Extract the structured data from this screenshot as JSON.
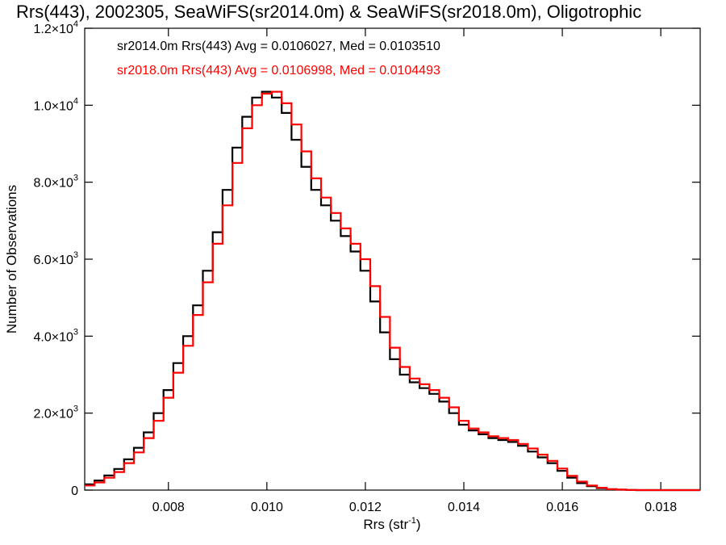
{
  "chart_data": {
    "type": "line",
    "title": "Rrs(443), 2002305, SeaWiFS(sr2014.0m) & SeaWiFS(sr2018.0m), Oligotrophic",
    "xlabel": "Rrs (str",
    "xlabel_sup": "-1",
    "xlabel_close": ")",
    "ylabel": "Number of Observations",
    "xlim": [
      0.0063,
      0.0188
    ],
    "ylim": [
      0,
      12000
    ],
    "x_ticks": [
      {
        "value": 0.008,
        "label": "0.008"
      },
      {
        "value": 0.01,
        "label": "0.010"
      },
      {
        "value": 0.012,
        "label": "0.012"
      },
      {
        "value": 0.014,
        "label": "0.014"
      },
      {
        "value": 0.016,
        "label": "0.016"
      },
      {
        "value": 0.018,
        "label": "0.018"
      }
    ],
    "y_ticks": [
      {
        "value": 0,
        "label": "0",
        "sup": ""
      },
      {
        "value": 2000,
        "label": "2.0×10",
        "sup": "3"
      },
      {
        "value": 4000,
        "label": "4.0×10",
        "sup": "3"
      },
      {
        "value": 6000,
        "label": "6.0×10",
        "sup": "3"
      },
      {
        "value": 8000,
        "label": "8.0×10",
        "sup": "3"
      },
      {
        "value": 10000,
        "label": "1.0×10",
        "sup": "4"
      },
      {
        "value": 12000,
        "label": "1.2×10",
        "sup": "4"
      }
    ],
    "grid": false,
    "legend_position": "top-left",
    "series": [
      {
        "name": "sr2014.0m",
        "legend": "sr2014.0m Rrs(443) Avg = 0.0106027, Med = 0.0103510",
        "color": "#000000",
        "x": [
          0.0063,
          0.0065,
          0.0067,
          0.0069,
          0.0071,
          0.0073,
          0.0075,
          0.0077,
          0.0079,
          0.0081,
          0.0083,
          0.0085,
          0.0087,
          0.0089,
          0.0091,
          0.0093,
          0.0095,
          0.0097,
          0.0099,
          0.0101,
          0.0103,
          0.0105,
          0.0107,
          0.0109,
          0.0111,
          0.0113,
          0.0115,
          0.0117,
          0.0119,
          0.0121,
          0.0123,
          0.0125,
          0.0127,
          0.0129,
          0.0131,
          0.0133,
          0.0135,
          0.0137,
          0.0139,
          0.0141,
          0.0143,
          0.0145,
          0.0147,
          0.0149,
          0.0151,
          0.0153,
          0.0155,
          0.0157,
          0.0159,
          0.0161,
          0.0163,
          0.0165,
          0.0167,
          0.0169,
          0.0171,
          0.0173,
          0.0175,
          0.0177,
          0.0179,
          0.0181,
          0.0183,
          0.0185,
          0.0188
        ],
        "y": [
          150,
          250,
          380,
          550,
          800,
          1100,
          1500,
          2000,
          2600,
          3300,
          4000,
          4800,
          5700,
          6700,
          7800,
          8900,
          9700,
          10200,
          10350,
          10200,
          9800,
          9100,
          8400,
          7800,
          7400,
          7000,
          6600,
          6200,
          5700,
          4900,
          4100,
          3400,
          3000,
          2800,
          2650,
          2500,
          2300,
          2000,
          1700,
          1550,
          1450,
          1350,
          1300,
          1250,
          1150,
          1000,
          850,
          700,
          500,
          320,
          180,
          100,
          50,
          20,
          10,
          5,
          0,
          0,
          0,
          0,
          0,
          0,
          0
        ]
      },
      {
        "name": "sr2018.0m",
        "legend": "sr2018.0m Rrs(443) Avg = 0.0106998, Med = 0.0104493",
        "color": "#ff0000",
        "x": [
          0.0063,
          0.0065,
          0.0067,
          0.0069,
          0.0071,
          0.0073,
          0.0075,
          0.0077,
          0.0079,
          0.0081,
          0.0083,
          0.0085,
          0.0087,
          0.0089,
          0.0091,
          0.0093,
          0.0095,
          0.0097,
          0.0099,
          0.0101,
          0.0103,
          0.0105,
          0.0107,
          0.0109,
          0.0111,
          0.0113,
          0.0115,
          0.0117,
          0.0119,
          0.0121,
          0.0123,
          0.0125,
          0.0127,
          0.0129,
          0.0131,
          0.0133,
          0.0135,
          0.0137,
          0.0139,
          0.0141,
          0.0143,
          0.0145,
          0.0147,
          0.0149,
          0.0151,
          0.0153,
          0.0155,
          0.0157,
          0.0159,
          0.0161,
          0.0163,
          0.0165,
          0.0167,
          0.0169,
          0.0171,
          0.0173,
          0.0175,
          0.0177,
          0.0179,
          0.0181,
          0.0183,
          0.0185,
          0.0188
        ],
        "y": [
          120,
          200,
          320,
          470,
          700,
          980,
          1350,
          1800,
          2400,
          3050,
          3750,
          4550,
          5400,
          6400,
          7400,
          8500,
          9400,
          10000,
          10300,
          10350,
          10050,
          9500,
          8800,
          8100,
          7600,
          7200,
          6800,
          6400,
          6000,
          5300,
          4500,
          3700,
          3200,
          2900,
          2750,
          2600,
          2400,
          2150,
          1800,
          1600,
          1500,
          1400,
          1350,
          1300,
          1200,
          1080,
          920,
          760,
          560,
          370,
          220,
          120,
          60,
          25,
          12,
          5,
          0,
          0,
          0,
          0,
          0,
          0,
          0
        ]
      }
    ]
  }
}
